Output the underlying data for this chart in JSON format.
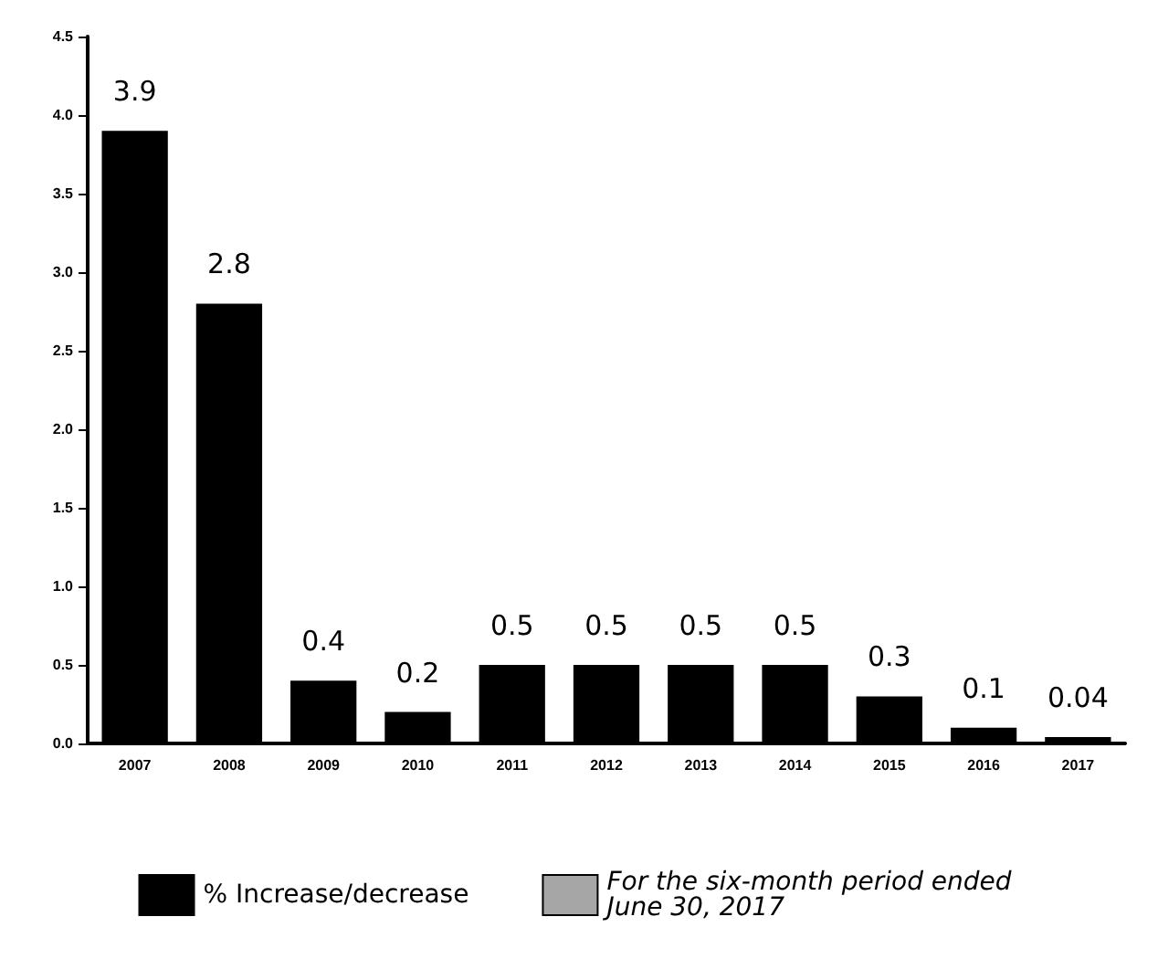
{
  "chart_data": {
    "type": "bar",
    "categories": [
      "2007",
      "2008",
      "2009",
      "2010",
      "2011",
      "2012",
      "2013",
      "2014",
      "2015",
      "2016",
      "2017"
    ],
    "series": [
      {
        "name": "% Increase/decrease",
        "color": "#000000",
        "values": [
          3.9,
          2.8,
          0.4,
          0.2,
          0.5,
          0.5,
          0.5,
          0.5,
          0.3,
          0.1,
          0.04
        ]
      },
      {
        "name": "For the six-month period ended June 30, 2017",
        "color": "#a6a6a6",
        "values": [
          null,
          null,
          null,
          null,
          null,
          null,
          null,
          null,
          null,
          null,
          null
        ]
      }
    ],
    "ylim": [
      0,
      4.5
    ],
    "yticks": [
      {
        "value": 0,
        "label": "0.0"
      },
      0.5,
      {
        "value": 1,
        "label": "1.0"
      },
      1.5,
      {
        "value": 2,
        "label": "2.0"
      },
      2.5,
      {
        "value": 3,
        "label": "3.0"
      },
      3.5,
      {
        "value": 4,
        "label": "4.0"
      },
      4.5
    ],
    "data_labels": true,
    "grid": false,
    "legend": "bottom"
  }
}
